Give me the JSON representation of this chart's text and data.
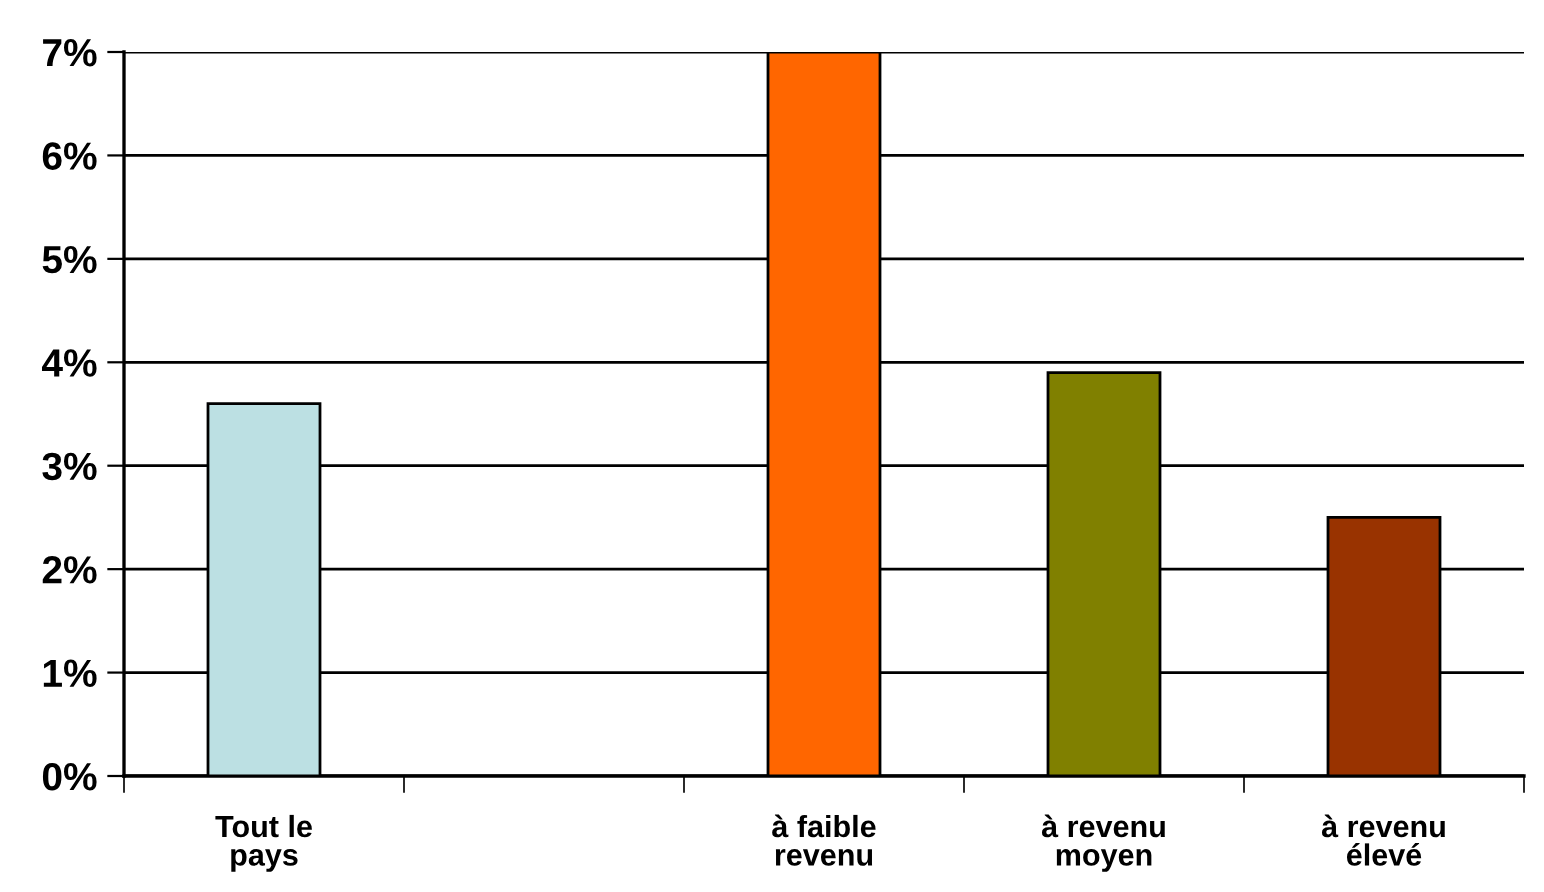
{
  "chart_data": {
    "type": "bar",
    "categories": [
      "Tout le\npays",
      null,
      "à faible\nrevenu",
      "à revenu\nmoyen",
      "à revenu\nélevé"
    ],
    "values": [
      3.6,
      null,
      7.0,
      3.9,
      2.5
    ],
    "colors": [
      "#bce0e3",
      null,
      "#ff6600",
      "#808000",
      "#993300"
    ],
    "ylim": [
      0,
      7
    ],
    "yticks": [
      {
        "value": 0,
        "label": "0%"
      },
      {
        "value": 1,
        "label": "1%"
      },
      {
        "value": 2,
        "label": "2%"
      },
      {
        "value": 3,
        "label": "3%"
      },
      {
        "value": 4,
        "label": "4%"
      },
      {
        "value": 5,
        "label": "5%"
      },
      {
        "value": 6,
        "label": "6%"
      },
      {
        "value": 7,
        "label": "7%"
      }
    ],
    "grid": "y"
  }
}
